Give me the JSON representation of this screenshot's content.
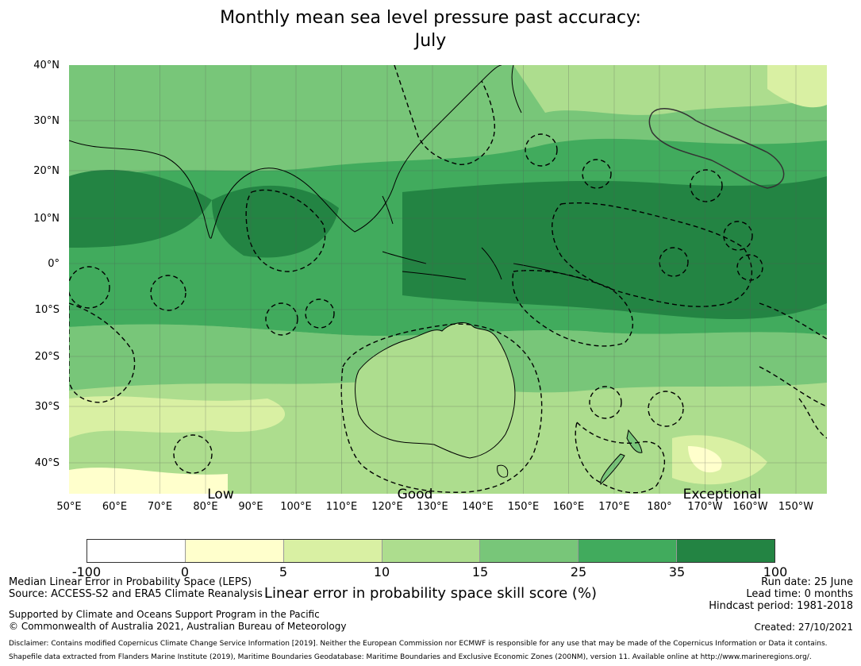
{
  "title_line1": "Monthly mean sea level pressure past accuracy:",
  "title_line2": "July",
  "lat_labels": [
    "40°N",
    "30°N",
    "20°N",
    "10°N",
    "0°",
    "10°S",
    "20°S",
    "30°S",
    "40°S"
  ],
  "lon_labels": [
    "50°E",
    "60°E",
    "70°E",
    "80°E",
    "90°E",
    "100°E",
    "110°E",
    "120°E",
    "130°E",
    "140°E",
    "150°E",
    "160°E",
    "170°E",
    "180°",
    "170°W",
    "160°W",
    "150°W"
  ],
  "band_labels": [
    "Low",
    "Good",
    "Exceptional"
  ],
  "colorbar": {
    "colors": [
      "#ffffff",
      "#ffffcc",
      "#d9f0a3",
      "#addd8e",
      "#78c679",
      "#41ab5d",
      "#238443"
    ],
    "ticks": [
      "-100",
      "0",
      "5",
      "10",
      "15",
      "25",
      "35",
      "100"
    ],
    "label": "Linear error in probability space skill score (%)"
  },
  "footer": {
    "metric": "Median Linear Error in Probability Space (LEPS)",
    "source": "Source: ACCESS-S2 and ERA5 Climate Reanalysis",
    "run_date": "Run date: 25 June",
    "lead_time": "Lead time: 0 months",
    "hindcast": "Hindcast period: 1981-2018",
    "supported": "Supported by Climate and Oceans Support Program in the Pacific",
    "copyright": "© Commonwealth of Australia 2021, Australian Bureau of Meteorology",
    "created": "Created: 27/10/2021",
    "disclaimer": "Disclaimer: Contains modified Copernicus Climate Change Service Information [2019]. Neither the European Commission nor ECMWF is responsible for any use that may be made of the Copernicus Information or Data it contains.",
    "shapefile": "Shapefile data extracted from Flanders Marine Institute (2019), Maritime Boundaries Geodatabase: Maritime Boundaries and Exclusive Economic Zones (200NM), version 11. Available online at http://www.marineregions.org/."
  }
}
